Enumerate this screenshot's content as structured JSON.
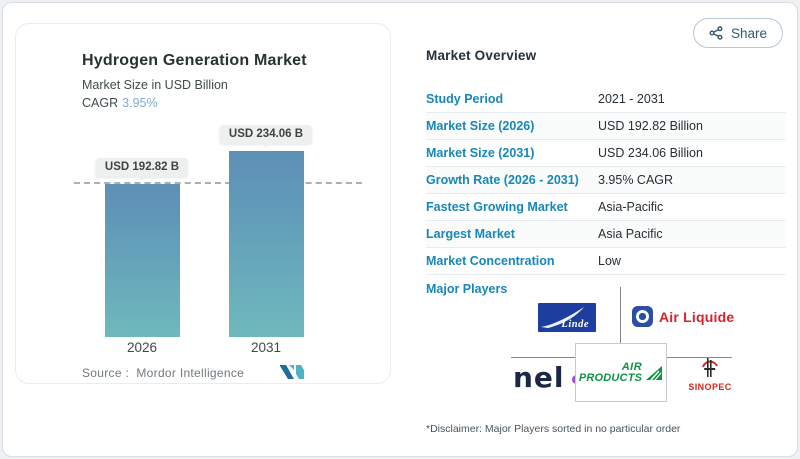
{
  "share": {
    "label": "Share"
  },
  "left_panel": {
    "title": "Hydrogen Generation Market",
    "subtitle": "Market Size in USD Billion",
    "cagr_label": "CAGR",
    "cagr_value": "3.95%",
    "source_label": "Source :",
    "source_value": "Mordor Intelligence"
  },
  "chart_data": {
    "type": "bar",
    "categories": [
      "2026",
      "2031"
    ],
    "values": [
      192.82,
      234.06
    ],
    "bar_labels": [
      "USD 192.82 B",
      "USD 234.06 B"
    ],
    "title": "Hydrogen Generation Market",
    "ylabel": "Market Size in USD Billion",
    "ylim": [
      0,
      260
    ],
    "grid": false,
    "legend": "none",
    "dashed_reference_line": 192.82,
    "bar_gradient": [
      "#5d8fb7",
      "#6fb9bd"
    ]
  },
  "overview": {
    "heading": "Market Overview",
    "rows": [
      {
        "label": "Study Period",
        "value": "2021 - 2031"
      },
      {
        "label": "Market Size (2026)",
        "value": "USD 192.82 Billion"
      },
      {
        "label": "Market Size (2031)",
        "value": "USD 234.06 Billion"
      },
      {
        "label": "Growth Rate (2026 - 2031)",
        "value": "3.95% CAGR"
      },
      {
        "label": "Fastest Growing Market",
        "value": "Asia-Pacific"
      },
      {
        "label": "Largest Market",
        "value": "Asia Pacific"
      },
      {
        "label": "Market Concentration",
        "value": "Low"
      }
    ],
    "major_players_label": "Major Players",
    "players": [
      "Linde",
      "Air Liquide",
      "nel",
      "Air Products",
      "SINOPEC"
    ],
    "disclaimer": "*Disclaimer: Major Players sorted in no particular order"
  },
  "logos": {
    "linde": "Linde",
    "air_liquide": "Air Liquide",
    "nel": "nel",
    "air_products_line1": "AIR",
    "air_products_line2": "PRODUCTS",
    "sinopec": "SINOPEC"
  },
  "colors": {
    "accent_blue": "#1787b8",
    "cagr_blue": "#7dabd3",
    "bar_top": "#5d8fb7",
    "bar_bottom": "#6fb9bd",
    "linde_blue": "#1d3e9e",
    "air_liquide_red": "#d6232e",
    "air_products_green": "#0b9444",
    "nel_navy": "#1c2747",
    "sinopec_red": "#d3291f"
  }
}
